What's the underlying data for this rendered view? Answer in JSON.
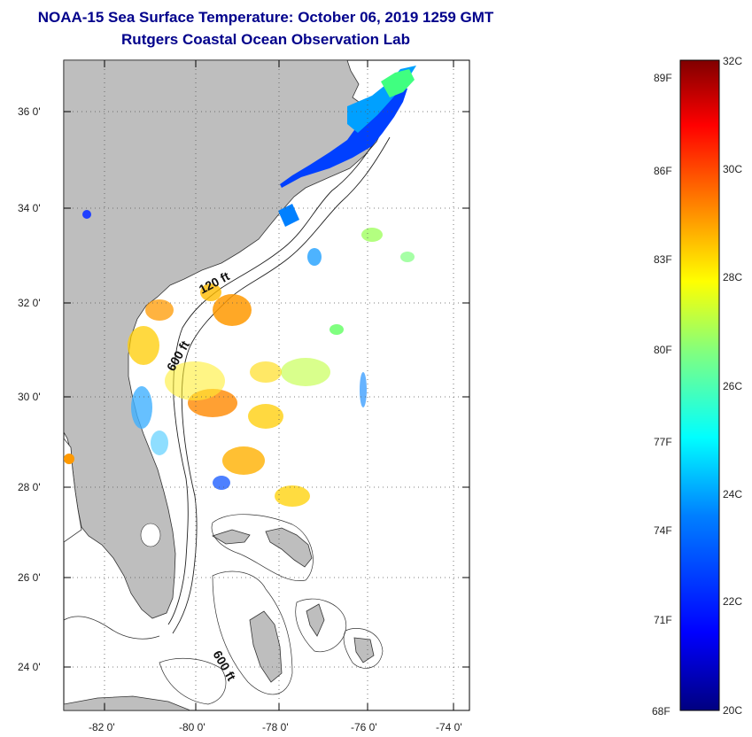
{
  "header": {
    "title": "NOAA-15 Sea Surface Temperature:  October 06, 2019 1259 GMT",
    "subtitle": "Rutgers Coastal Ocean Observation Lab"
  },
  "map": {
    "lat_labels": [
      "36 0'",
      "34 0'",
      "32 0'",
      "30 0'",
      "28 0'",
      "26 0'",
      "24 0'"
    ],
    "lon_labels": [
      "-82 0'",
      "-80 0'",
      "-78 0'",
      "-76 0'",
      "-74 0'"
    ],
    "contour_labels": [
      "120 ft",
      "600 ft",
      "600 ft"
    ]
  },
  "colorbar": {
    "fahrenheit": [
      "89F",
      "86F",
      "83F",
      "80F",
      "77F",
      "74F",
      "71F",
      "68F"
    ],
    "celsius": [
      "32C",
      "30C",
      "28C",
      "26C",
      "24C",
      "22C",
      "20C"
    ],
    "colors": [
      "#000080",
      "#0000ff",
      "#0080ff",
      "#00ffff",
      "#80ff80",
      "#ffff00",
      "#ff8000",
      "#ff0000",
      "#800000"
    ]
  }
}
